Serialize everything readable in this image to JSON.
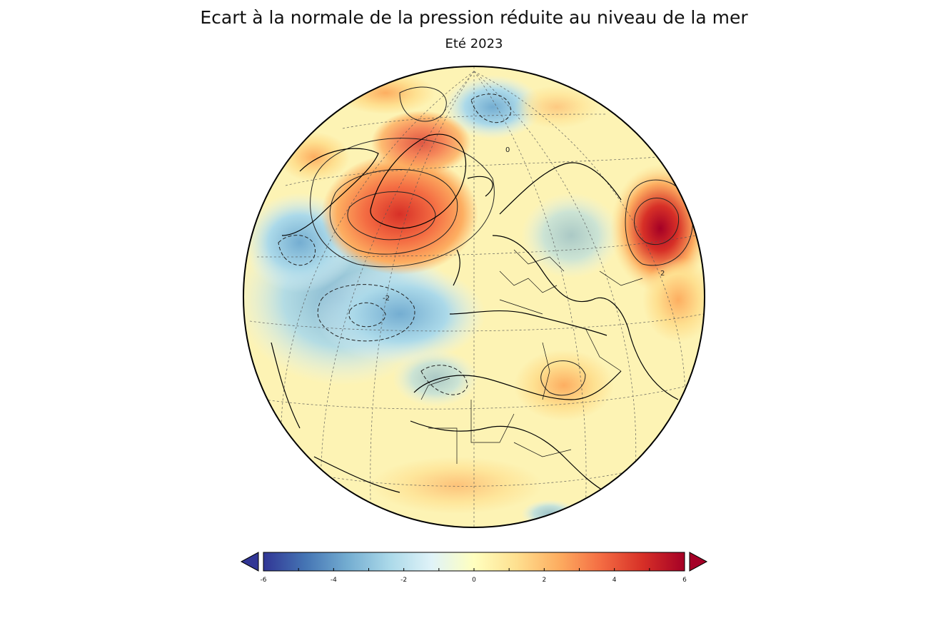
{
  "header": {
    "title": "Ecart à la normale de la pression réduite au niveau de la mer",
    "subtitle": "Eté 2023"
  },
  "map": {
    "projection": "orthographic",
    "contour_labels": [
      "0",
      "2",
      "-2"
    ]
  },
  "colorbar": {
    "min": -6,
    "max": 6,
    "tick_labels": [
      "-6",
      "-4",
      "-2",
      "0",
      "2",
      "4",
      "6"
    ],
    "colormap_stops": [
      "#313695",
      "#4575b4",
      "#74add1",
      "#abd9e9",
      "#e0f3f8",
      "#ffffbf",
      "#fee090",
      "#fdae61",
      "#f46d43",
      "#d73027",
      "#a50026"
    ],
    "extend_low_color": "#313695",
    "extend_high_color": "#a50026"
  }
}
